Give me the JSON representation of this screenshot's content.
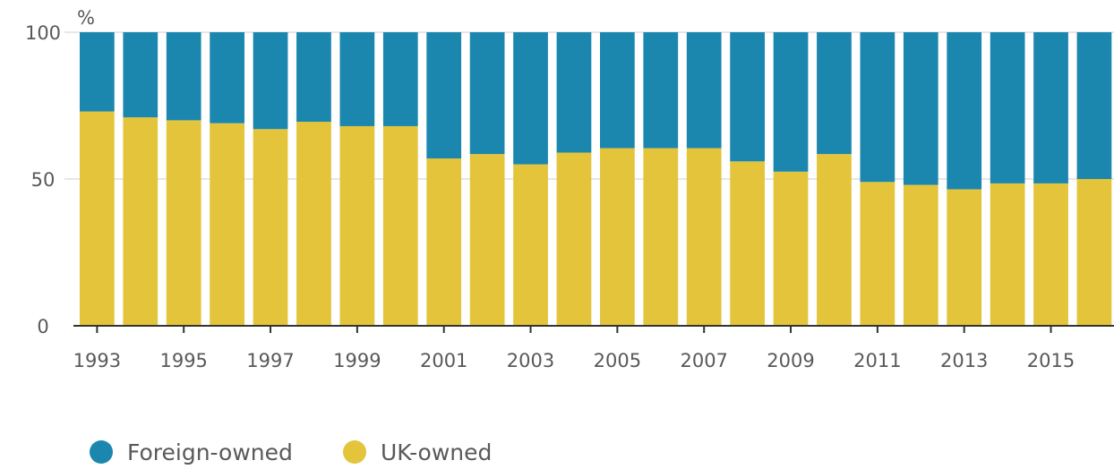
{
  "chart_data": {
    "type": "bar",
    "stacked": true,
    "unit": "%",
    "categories": [
      "1993",
      "1994",
      "1995",
      "1996",
      "1997",
      "1998",
      "1999",
      "2000",
      "2001",
      "2002",
      "2003",
      "2004",
      "2005",
      "2006",
      "2007",
      "2008",
      "2009",
      "2010",
      "2011",
      "2012",
      "2013",
      "2014",
      "2015",
      "2016"
    ],
    "x_tick_labels": [
      "1993",
      "1995",
      "1997",
      "1999",
      "2001",
      "2003",
      "2005",
      "2007",
      "2009",
      "2011",
      "2013",
      "2015"
    ],
    "y_tick_labels": [
      "0",
      "50",
      "100"
    ],
    "ylim": [
      0,
      100
    ],
    "series": [
      {
        "name": "UK-owned",
        "color": "#e3c43a",
        "values": [
          73,
          71,
          70,
          69,
          67,
          69.5,
          68,
          68,
          57,
          58.5,
          55,
          59,
          60.5,
          60.5,
          60.5,
          56,
          52.5,
          58.5,
          49,
          48,
          46.5,
          48.5,
          48.5,
          50
        ]
      },
      {
        "name": "Foreign-owned",
        "color": "#1b87af",
        "values": [
          27,
          29,
          30,
          31,
          33,
          30.5,
          32,
          32,
          43,
          41.5,
          45,
          41,
          39.5,
          39.5,
          39.5,
          44,
          47.5,
          41.5,
          51,
          52,
          53.5,
          51.5,
          51.5,
          50
        ]
      }
    ],
    "legend": {
      "position": "bottom-left",
      "order": [
        "Foreign-owned",
        "UK-owned"
      ]
    },
    "grid": true,
    "gridline_color": "#e6e6e6",
    "axis_color": "#333333"
  }
}
